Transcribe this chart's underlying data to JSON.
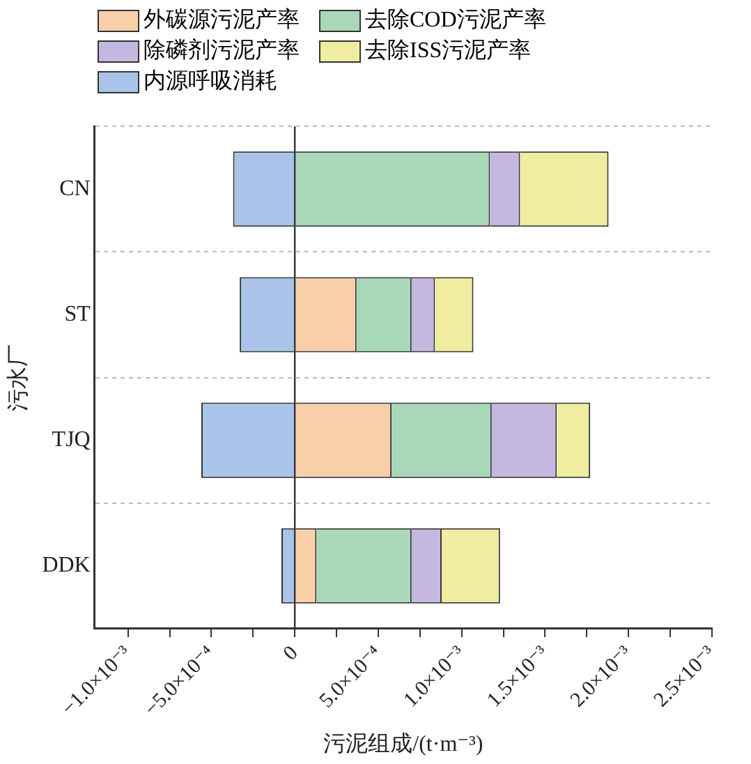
{
  "chart_data": {
    "type": "bar",
    "orientation": "horizontal",
    "stacked": true,
    "categories": [
      "CN",
      "ST",
      "TJQ",
      "DDK"
    ],
    "xlabel": "污泥组成/(t·m⁻³)",
    "ylabel": "污水厂",
    "series": [
      {
        "name": "外碳源污泥产率",
        "color": "#f9cfaa",
        "values": [
          0,
          0.00037,
          0.00058,
          0.00013
        ]
      },
      {
        "name": "去除COD污泥产率",
        "color": "#a8d8b8",
        "values": [
          0.00117,
          0.00033,
          0.0006,
          0.00057
        ]
      },
      {
        "name": "除磷剂污泥产率",
        "color": "#c4b8e0",
        "values": [
          0.00018,
          0.00014,
          0.00039,
          0.00018
        ]
      },
      {
        "name": "去除ISS污泥产率",
        "color": "#f0eca0",
        "values": [
          0.00053,
          0.00023,
          0.0002,
          0.00035
        ]
      },
      {
        "name": "内源呼吸消耗",
        "color": "#a9c4e8",
        "values": [
          -0.00037,
          -0.00033,
          -0.00056,
          -8e-05
        ]
      }
    ],
    "xlim": [
      -0.0012,
      0.0025
    ],
    "xticks": [
      {
        "value": -0.001,
        "label": "−1.0×10⁻³"
      },
      {
        "value": -0.00075,
        "label": null
      },
      {
        "value": -0.0005,
        "label": "−5.0×10⁻⁴"
      },
      {
        "value": -0.00025,
        "label": null
      },
      0,
      {
        "value": 0.00025,
        "label": null
      },
      {
        "value": 0.0005,
        "label": "5.0×10⁻⁴"
      },
      {
        "value": 0.00075,
        "label": null
      },
      {
        "value": 0.001,
        "label": "1.0×10⁻³"
      },
      {
        "value": 0.00125,
        "label": null
      },
      {
        "value": 0.0015,
        "label": "1.5×10⁻³"
      },
      {
        "value": 0.00175,
        "label": null
      },
      {
        "value": 0.002,
        "label": "2.0×10⁻³"
      },
      {
        "value": 0.00225,
        "label": null
      },
      {
        "value": 0.0025,
        "label": "2.5×10⁻³"
      }
    ],
    "ref_lines": [
      {
        "axis": "x",
        "value": 0,
        "color": "#333333"
      }
    ],
    "grid": "y",
    "legend": "top left"
  }
}
